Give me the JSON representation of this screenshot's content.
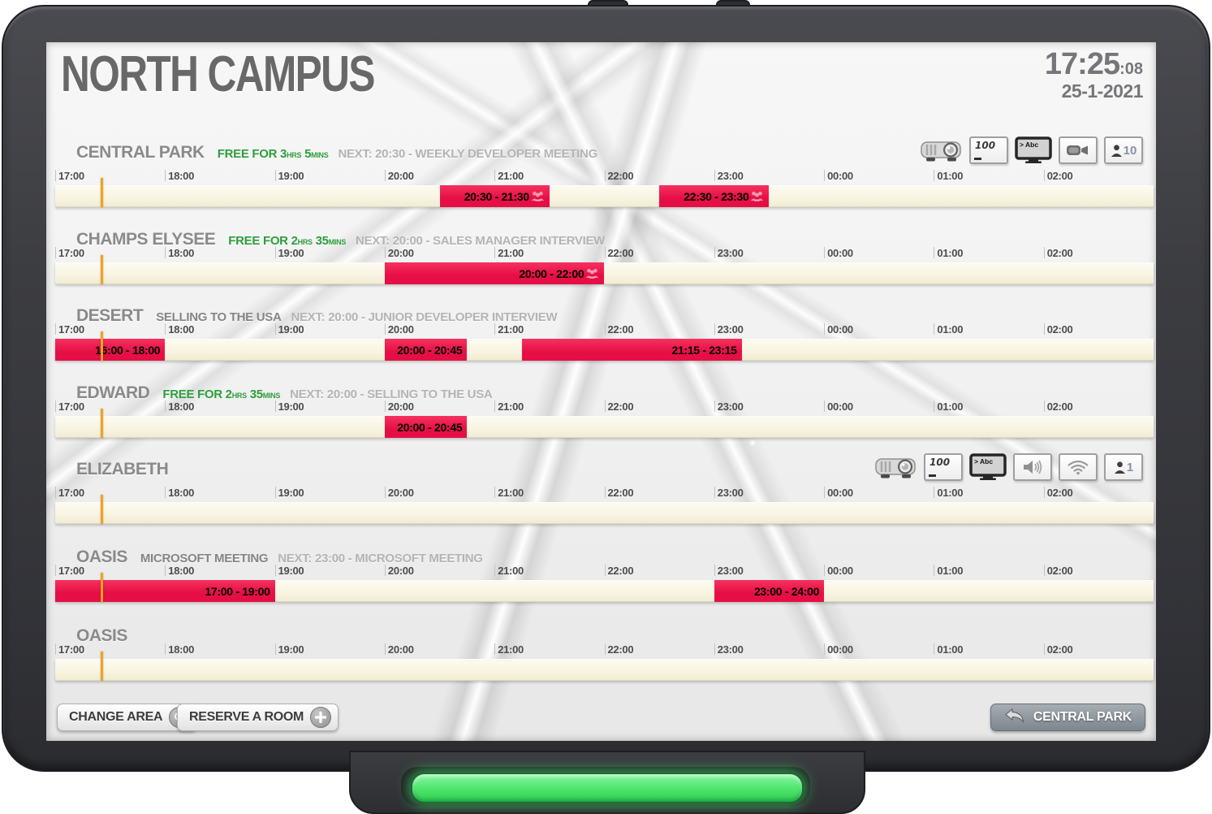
{
  "header": {
    "title": "NORTH CAMPUS",
    "time": "17:25",
    "seconds": ":08",
    "date": "25-1-2021"
  },
  "timeline": {
    "hours": [
      "17:00",
      "18:00",
      "19:00",
      "20:00",
      "21:00",
      "22:00",
      "23:00",
      "00:00",
      "01:00",
      "02:00"
    ],
    "total_minutes": 600,
    "now_minutes": 25
  },
  "colors": {
    "bar": "#e60f45",
    "bar_light": "#f5315f",
    "track": "#f9f5e3",
    "track_deep": "#f1ebd2",
    "now_line": "#f1a31c",
    "free_text": "#2f9e3e",
    "led": "#55e873"
  },
  "rooms": [
    {
      "name": "CENTRAL PARK",
      "status": {
        "type": "free",
        "prefix": "FREE FOR",
        "hours": "3",
        "hours_unit": "HRS",
        "minutes": "5",
        "minutes_unit": "MINS"
      },
      "next": "NEXT: 20:30 - WEEKLY DEVELOPER MEETING",
      "amenities": {
        "list": [
          "projector",
          "whiteboard",
          "display",
          "video-camera",
          "capacity"
        ],
        "whiteboard_text": "100",
        "display_text": "> Abc",
        "capacity": "10"
      },
      "bookings": [
        {
          "label": "20:30 - 21:30",
          "start": 210,
          "end": 270,
          "group_icon": true
        },
        {
          "label": "22:30 - 23:30",
          "start": 330,
          "end": 390,
          "group_icon": true
        }
      ]
    },
    {
      "name": "CHAMPS ELYSEE",
      "status": {
        "type": "free",
        "prefix": "FREE FOR",
        "hours": "2",
        "hours_unit": "HRS",
        "minutes": "35",
        "minutes_unit": "MINS"
      },
      "next": "NEXT: 20:00 - SALES MANAGER INTERVIEW",
      "bookings": [
        {
          "label": "20:00 - 22:00",
          "start": 180,
          "end": 300,
          "group_icon": true
        }
      ]
    },
    {
      "name": "DESERT",
      "status": {
        "type": "busy",
        "current": "SELLING TO THE USA"
      },
      "next": "NEXT: 20:00 - JUNIOR DEVELOPER INTERVIEW",
      "bookings": [
        {
          "label": "16:00 - 18:00",
          "start": -60,
          "end": 60
        },
        {
          "label": "20:00 - 20:45",
          "start": 180,
          "end": 225
        },
        {
          "label": "21:15 - 23:15",
          "start": 255,
          "end": 375
        }
      ]
    },
    {
      "name": "EDWARD",
      "status": {
        "type": "free",
        "prefix": "FREE FOR",
        "hours": "2",
        "hours_unit": "HRS",
        "minutes": "35",
        "minutes_unit": "MINS"
      },
      "next": "NEXT: 20:00 - SELLING TO THE USA",
      "bookings": [
        {
          "label": "20:00 - 20:45",
          "start": 180,
          "end": 225
        }
      ]
    },
    {
      "name": "ELIZABETH",
      "amenities": {
        "list": [
          "projector",
          "whiteboard",
          "display",
          "speaker",
          "wifi",
          "capacity"
        ],
        "whiteboard_text": "100",
        "display_text": "> Abc",
        "capacity": "1"
      },
      "bookings": []
    },
    {
      "name": "OASIS",
      "status": {
        "type": "busy",
        "current": "MICROSOFT MEETING"
      },
      "next": "NEXT: 23:00 - MICROSOFT MEETING",
      "bookings": [
        {
          "label": "17:00 - 19:00",
          "start": 0,
          "end": 120
        },
        {
          "label": "23:00 - 24:00",
          "start": 360,
          "end": 420
        }
      ]
    },
    {
      "name": "OASIS",
      "bookings": []
    }
  ],
  "footer": {
    "change_area": "CHANGE AREA",
    "reserve_room": "RESERVE A ROOM",
    "back_button": "CENTRAL PARK"
  }
}
